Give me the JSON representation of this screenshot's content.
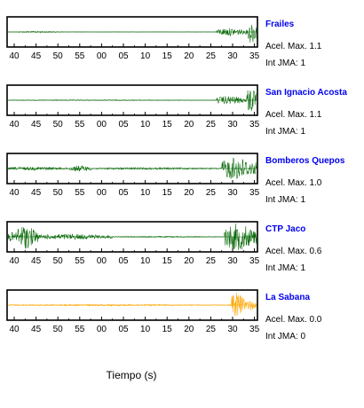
{
  "chart_data": {
    "type": "line",
    "xlabel": "Tiempo (s)",
    "x_tick_labels": [
      "40",
      "45",
      "50",
      "55",
      "00",
      "05",
      "10",
      "15",
      "20",
      "25",
      "30",
      "35"
    ],
    "series": [
      {
        "name": "Frailes",
        "color": "#006400",
        "acel_label": "Acel. Max. 1.1",
        "int_label": "Int JMA: 1",
        "bursts": [
          {
            "start_fraction": 0.04,
            "end_fraction": 0.22,
            "amplitude": 0.05
          },
          {
            "start_fraction": 0.84,
            "end_fraction": 0.965,
            "amplitude": 0.28
          },
          {
            "start_fraction": 0.965,
            "end_fraction": 1.0,
            "amplitude": 0.85
          }
        ]
      },
      {
        "name": "San Ignacio Acosta",
        "color": "#006400",
        "acel_label": "Acel. Max. 1.1",
        "int_label": "Int JMA: 1",
        "bursts": [
          {
            "start_fraction": 0.0,
            "end_fraction": 0.84,
            "amplitude": 0.03
          },
          {
            "start_fraction": 0.84,
            "end_fraction": 0.96,
            "amplitude": 0.3
          },
          {
            "start_fraction": 0.96,
            "end_fraction": 1.0,
            "amplitude": 0.95
          }
        ]
      },
      {
        "name": "Bomberos Quepos",
        "color": "#006400",
        "acel_label": "Acel. Max. 1.0",
        "int_label": "Int JMA: 1",
        "bursts": [
          {
            "start_fraction": 0.0,
            "end_fraction": 0.25,
            "amplitude": 0.12
          },
          {
            "start_fraction": 0.25,
            "end_fraction": 0.34,
            "amplitude": 0.22
          },
          {
            "start_fraction": 0.34,
            "end_fraction": 0.86,
            "amplitude": 0.07
          },
          {
            "start_fraction": 0.86,
            "end_fraction": 1.0,
            "amplitude": 0.8
          }
        ]
      },
      {
        "name": "CTP Jaco",
        "color": "#006400",
        "acel_label": "Acel. Max. 0.6",
        "int_label": "Int JMA: 1",
        "bursts": [
          {
            "start_fraction": 0.0,
            "end_fraction": 0.03,
            "amplitude": 0.35
          },
          {
            "start_fraction": 0.03,
            "end_fraction": 0.12,
            "amplitude": 0.85
          },
          {
            "start_fraction": 0.12,
            "end_fraction": 0.42,
            "amplitude": 0.2
          },
          {
            "start_fraction": 0.42,
            "end_fraction": 0.87,
            "amplitude": 0.04
          },
          {
            "start_fraction": 0.87,
            "end_fraction": 1.0,
            "amplitude": 0.95
          }
        ]
      },
      {
        "name": "La Sabana",
        "color": "#ffa500",
        "acel_label": "Acel. Max. 0.0",
        "int_label": "Int JMA: 0",
        "bursts": [
          {
            "start_fraction": 0.0,
            "end_fraction": 0.9,
            "amplitude": 0.06
          },
          {
            "start_fraction": 0.9,
            "end_fraction": 0.95,
            "amplitude": 0.95
          },
          {
            "start_fraction": 0.95,
            "end_fraction": 1.0,
            "amplitude": 0.4
          }
        ]
      }
    ]
  }
}
